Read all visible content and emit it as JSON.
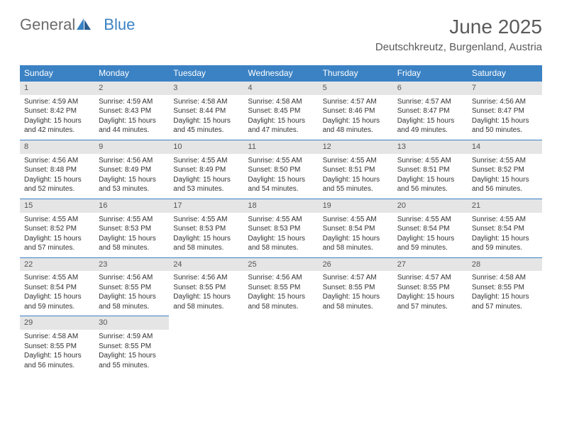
{
  "logo": {
    "part1": "General",
    "part2": "Blue"
  },
  "header": {
    "title": "June 2025",
    "location": "Deutschkreutz, Burgenland, Austria"
  },
  "colors": {
    "accent": "#3b82c4",
    "daynum_bg": "#e5e5e5",
    "text": "#333333",
    "header_text": "#5a5a5a",
    "logo_gray": "#6b6b6b"
  },
  "weekdays": [
    "Sunday",
    "Monday",
    "Tuesday",
    "Wednesday",
    "Thursday",
    "Friday",
    "Saturday"
  ],
  "days": [
    {
      "n": "1",
      "sunrise": "Sunrise: 4:59 AM",
      "sunset": "Sunset: 8:42 PM",
      "day1": "Daylight: 15 hours",
      "day2": "and 42 minutes."
    },
    {
      "n": "2",
      "sunrise": "Sunrise: 4:59 AM",
      "sunset": "Sunset: 8:43 PM",
      "day1": "Daylight: 15 hours",
      "day2": "and 44 minutes."
    },
    {
      "n": "3",
      "sunrise": "Sunrise: 4:58 AM",
      "sunset": "Sunset: 8:44 PM",
      "day1": "Daylight: 15 hours",
      "day2": "and 45 minutes."
    },
    {
      "n": "4",
      "sunrise": "Sunrise: 4:58 AM",
      "sunset": "Sunset: 8:45 PM",
      "day1": "Daylight: 15 hours",
      "day2": "and 47 minutes."
    },
    {
      "n": "5",
      "sunrise": "Sunrise: 4:57 AM",
      "sunset": "Sunset: 8:46 PM",
      "day1": "Daylight: 15 hours",
      "day2": "and 48 minutes."
    },
    {
      "n": "6",
      "sunrise": "Sunrise: 4:57 AM",
      "sunset": "Sunset: 8:47 PM",
      "day1": "Daylight: 15 hours",
      "day2": "and 49 minutes."
    },
    {
      "n": "7",
      "sunrise": "Sunrise: 4:56 AM",
      "sunset": "Sunset: 8:47 PM",
      "day1": "Daylight: 15 hours",
      "day2": "and 50 minutes."
    },
    {
      "n": "8",
      "sunrise": "Sunrise: 4:56 AM",
      "sunset": "Sunset: 8:48 PM",
      "day1": "Daylight: 15 hours",
      "day2": "and 52 minutes."
    },
    {
      "n": "9",
      "sunrise": "Sunrise: 4:56 AM",
      "sunset": "Sunset: 8:49 PM",
      "day1": "Daylight: 15 hours",
      "day2": "and 53 minutes."
    },
    {
      "n": "10",
      "sunrise": "Sunrise: 4:55 AM",
      "sunset": "Sunset: 8:49 PM",
      "day1": "Daylight: 15 hours",
      "day2": "and 53 minutes."
    },
    {
      "n": "11",
      "sunrise": "Sunrise: 4:55 AM",
      "sunset": "Sunset: 8:50 PM",
      "day1": "Daylight: 15 hours",
      "day2": "and 54 minutes."
    },
    {
      "n": "12",
      "sunrise": "Sunrise: 4:55 AM",
      "sunset": "Sunset: 8:51 PM",
      "day1": "Daylight: 15 hours",
      "day2": "and 55 minutes."
    },
    {
      "n": "13",
      "sunrise": "Sunrise: 4:55 AM",
      "sunset": "Sunset: 8:51 PM",
      "day1": "Daylight: 15 hours",
      "day2": "and 56 minutes."
    },
    {
      "n": "14",
      "sunrise": "Sunrise: 4:55 AM",
      "sunset": "Sunset: 8:52 PM",
      "day1": "Daylight: 15 hours",
      "day2": "and 56 minutes."
    },
    {
      "n": "15",
      "sunrise": "Sunrise: 4:55 AM",
      "sunset": "Sunset: 8:52 PM",
      "day1": "Daylight: 15 hours",
      "day2": "and 57 minutes."
    },
    {
      "n": "16",
      "sunrise": "Sunrise: 4:55 AM",
      "sunset": "Sunset: 8:53 PM",
      "day1": "Daylight: 15 hours",
      "day2": "and 58 minutes."
    },
    {
      "n": "17",
      "sunrise": "Sunrise: 4:55 AM",
      "sunset": "Sunset: 8:53 PM",
      "day1": "Daylight: 15 hours",
      "day2": "and 58 minutes."
    },
    {
      "n": "18",
      "sunrise": "Sunrise: 4:55 AM",
      "sunset": "Sunset: 8:53 PM",
      "day1": "Daylight: 15 hours",
      "day2": "and 58 minutes."
    },
    {
      "n": "19",
      "sunrise": "Sunrise: 4:55 AM",
      "sunset": "Sunset: 8:54 PM",
      "day1": "Daylight: 15 hours",
      "day2": "and 58 minutes."
    },
    {
      "n": "20",
      "sunrise": "Sunrise: 4:55 AM",
      "sunset": "Sunset: 8:54 PM",
      "day1": "Daylight: 15 hours",
      "day2": "and 59 minutes."
    },
    {
      "n": "21",
      "sunrise": "Sunrise: 4:55 AM",
      "sunset": "Sunset: 8:54 PM",
      "day1": "Daylight: 15 hours",
      "day2": "and 59 minutes."
    },
    {
      "n": "22",
      "sunrise": "Sunrise: 4:55 AM",
      "sunset": "Sunset: 8:54 PM",
      "day1": "Daylight: 15 hours",
      "day2": "and 59 minutes."
    },
    {
      "n": "23",
      "sunrise": "Sunrise: 4:56 AM",
      "sunset": "Sunset: 8:55 PM",
      "day1": "Daylight: 15 hours",
      "day2": "and 58 minutes."
    },
    {
      "n": "24",
      "sunrise": "Sunrise: 4:56 AM",
      "sunset": "Sunset: 8:55 PM",
      "day1": "Daylight: 15 hours",
      "day2": "and 58 minutes."
    },
    {
      "n": "25",
      "sunrise": "Sunrise: 4:56 AM",
      "sunset": "Sunset: 8:55 PM",
      "day1": "Daylight: 15 hours",
      "day2": "and 58 minutes."
    },
    {
      "n": "26",
      "sunrise": "Sunrise: 4:57 AM",
      "sunset": "Sunset: 8:55 PM",
      "day1": "Daylight: 15 hours",
      "day2": "and 58 minutes."
    },
    {
      "n": "27",
      "sunrise": "Sunrise: 4:57 AM",
      "sunset": "Sunset: 8:55 PM",
      "day1": "Daylight: 15 hours",
      "day2": "and 57 minutes."
    },
    {
      "n": "28",
      "sunrise": "Sunrise: 4:58 AM",
      "sunset": "Sunset: 8:55 PM",
      "day1": "Daylight: 15 hours",
      "day2": "and 57 minutes."
    },
    {
      "n": "29",
      "sunrise": "Sunrise: 4:58 AM",
      "sunset": "Sunset: 8:55 PM",
      "day1": "Daylight: 15 hours",
      "day2": "and 56 minutes."
    },
    {
      "n": "30",
      "sunrise": "Sunrise: 4:59 AM",
      "sunset": "Sunset: 8:55 PM",
      "day1": "Daylight: 15 hours",
      "day2": "and 55 minutes."
    }
  ]
}
